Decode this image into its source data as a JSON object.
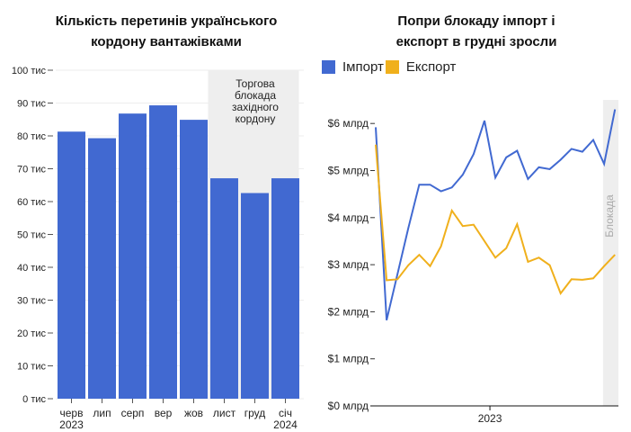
{
  "chart_data": [
    {
      "type": "bar",
      "title": "Кількість перетинів українського кордону вантажівками",
      "title_lines": [
        "Кількість перетинів українського",
        "кордону вантажівками"
      ],
      "categories": [
        "черв",
        "лип",
        "серп",
        "вер",
        "жов",
        "лист",
        "груд",
        "січ"
      ],
      "category_sublabels": [
        "2023",
        "",
        "",
        "",
        "",
        "",
        "",
        "2024"
      ],
      "values": [
        81300,
        79300,
        86800,
        89300,
        84900,
        67100,
        62600,
        67100
      ],
      "ylim": [
        0,
        100000
      ],
      "yticks": [
        "0 тис",
        "10 тис",
        "20 тис",
        "30 тис",
        "40 тис",
        "50 тис",
        "60 тис",
        "70 тис",
        "80 тис",
        "90 тис",
        "100 тис"
      ],
      "annotation": [
        "Торгова",
        "блокада",
        "західного",
        "кордону"
      ],
      "annotation_range_categories": [
        "лист",
        "січ"
      ],
      "color": "#4169d1",
      "grid": true
    },
    {
      "type": "line",
      "title": "Попри блокаду імпорт і експорт в грудні зросли",
      "title_lines": [
        "Попри блокаду імпорт і",
        "експорт в грудні зросли"
      ],
      "x_months": [
        "2022-02",
        "2022-03",
        "2022-04",
        "2022-05",
        "2022-06",
        "2022-07",
        "2022-08",
        "2022-09",
        "2022-10",
        "2022-11",
        "2022-12",
        "2023-01",
        "2023-02",
        "2023-03",
        "2023-04",
        "2023-05",
        "2023-06",
        "2023-07",
        "2023-08",
        "2023-09",
        "2023-10",
        "2023-11",
        "2023-12"
      ],
      "series": [
        {
          "name": "Імпорт",
          "color": "#4169d1",
          "values": [
            5.92,
            1.82,
            2.8,
            3.78,
            4.7,
            4.7,
            4.56,
            4.64,
            4.91,
            5.35,
            6.06,
            4.85,
            5.28,
            5.42,
            4.82,
            5.07,
            5.03,
            5.23,
            5.46,
            5.4,
            5.65,
            5.14,
            6.3
          ]
        },
        {
          "name": "Експорт",
          "color": "#f0b01c",
          "values": [
            5.55,
            2.67,
            2.69,
            2.99,
            3.21,
            2.97,
            3.39,
            4.15,
            3.82,
            3.85,
            3.5,
            3.15,
            3.35,
            3.86,
            3.06,
            3.15,
            2.99,
            2.39,
            2.69,
            2.68,
            2.71,
            2.97,
            3.21
          ]
        }
      ],
      "ylim": [
        0,
        6.5
      ],
      "yticks": [
        "$0 млрд",
        "$1 млрд",
        "$2 млрд",
        "$3 млрд",
        "$4 млрд",
        "$5 млрд",
        "$6 млрд"
      ],
      "xticks": [
        "2023"
      ],
      "annotation": "Блокада",
      "annotation_from_index": 20.9,
      "legend": "top-left"
    }
  ]
}
